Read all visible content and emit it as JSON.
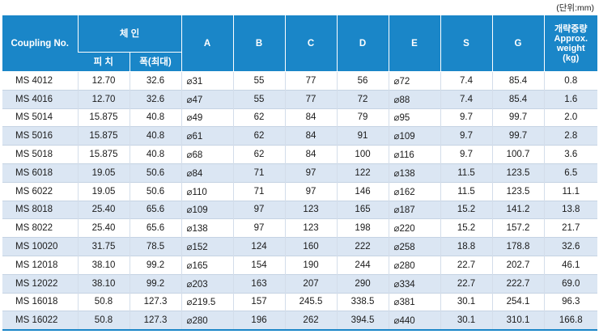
{
  "unit_note": "(단위:mm)",
  "headers": {
    "coupling": "Coupling No.",
    "chain": "체 인",
    "pitch": "피 치",
    "width": "폭(최대)",
    "a": "A",
    "b": "B",
    "c": "C",
    "d": "D",
    "e": "E",
    "s": "S",
    "g": "G",
    "weight_kr": "개략중량",
    "weight_en1": "Approx.",
    "weight_en2": "weight",
    "weight_unit": "(kg)"
  },
  "rows": [
    [
      "MS 4012",
      "12.70",
      "32.6",
      "⌀31",
      "55",
      "77",
      "56",
      "⌀72",
      "7.4",
      "85.4",
      "0.8"
    ],
    [
      "MS 4016",
      "12.70",
      "32.6",
      "⌀47",
      "55",
      "77",
      "72",
      "⌀88",
      "7.4",
      "85.4",
      "1.6"
    ],
    [
      "MS 5014",
      "15.875",
      "40.8",
      "⌀49",
      "62",
      "84",
      "79",
      "⌀95",
      "9.7",
      "99.7",
      "2.0"
    ],
    [
      "MS 5016",
      "15.875",
      "40.8",
      "⌀61",
      "62",
      "84",
      "91",
      "⌀109",
      "9.7",
      "99.7",
      "2.8"
    ],
    [
      "MS 5018",
      "15.875",
      "40.8",
      "⌀68",
      "62",
      "84",
      "100",
      "⌀116",
      "9.7",
      "100.7",
      "3.6"
    ],
    [
      "MS 6018",
      "19.05",
      "50.6",
      "⌀84",
      "71",
      "97",
      "122",
      "⌀138",
      "11.5",
      "123.5",
      "6.5"
    ],
    [
      "MS 6022",
      "19.05",
      "50.6",
      "⌀110",
      "71",
      "97",
      "146",
      "⌀162",
      "11.5",
      "123.5",
      "11.1"
    ],
    [
      "MS 8018",
      "25.40",
      "65.6",
      "⌀109",
      "97",
      "123",
      "165",
      "⌀187",
      "15.2",
      "141.2",
      "13.8"
    ],
    [
      "MS 8022",
      "25.40",
      "65.6",
      "⌀138",
      "97",
      "123",
      "198",
      "⌀220",
      "15.2",
      "157.2",
      "21.7"
    ],
    [
      "MS 10020",
      "31.75",
      "78.5",
      "⌀152",
      "124",
      "160",
      "222",
      "⌀258",
      "18.8",
      "178.8",
      "32.6"
    ],
    [
      "MS 12018",
      "38.10",
      "99.2",
      "⌀165",
      "154",
      "190",
      "244",
      "⌀280",
      "22.7",
      "202.7",
      "46.1"
    ],
    [
      "MS 12022",
      "38.10",
      "99.2",
      "⌀203",
      "163",
      "207",
      "290",
      "⌀334",
      "22.7",
      "222.7",
      "69.0"
    ],
    [
      "MS 16018",
      "50.8",
      "127.3",
      "⌀219.5",
      "157",
      "245.5",
      "338.5",
      "⌀381",
      "30.1",
      "254.1",
      "96.3"
    ],
    [
      "MS 16022",
      "50.8",
      "127.3",
      "⌀280",
      "196",
      "262",
      "394.5",
      "⌀440",
      "30.1",
      "310.1",
      "166.8"
    ]
  ]
}
